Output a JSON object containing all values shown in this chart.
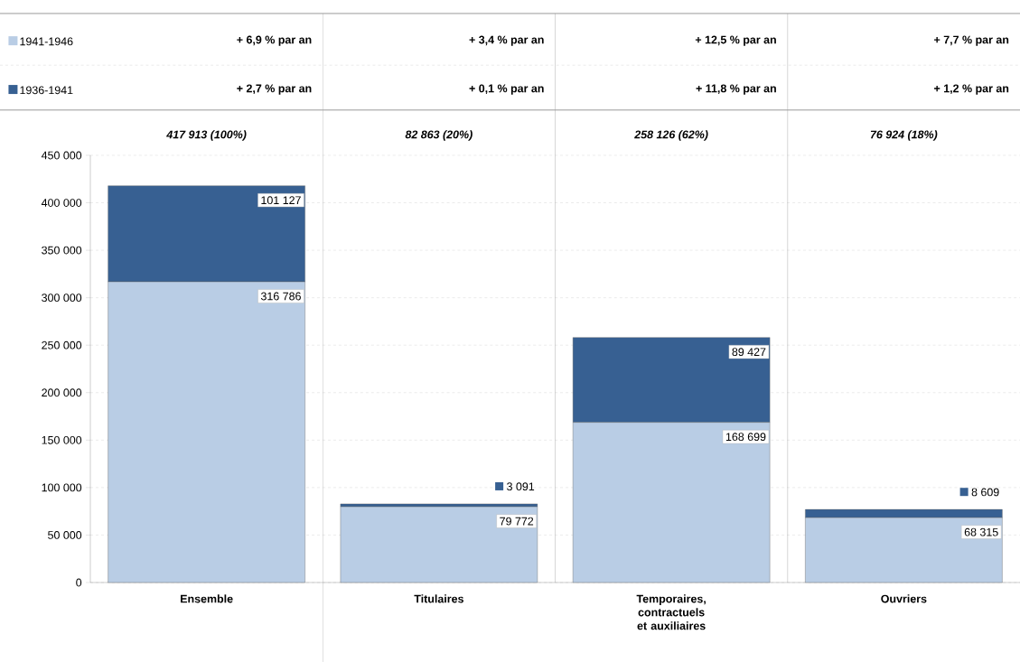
{
  "chart_data": {
    "type": "bar",
    "stacked": true,
    "categories": [
      "Ensemble",
      "Titulaires",
      "Temporaires, contractuels et auxiliaires",
      "Ouvriers"
    ],
    "series": [
      {
        "name": "1941-1946",
        "color": "#b9cde5",
        "values": [
          316786,
          79772,
          168699,
          68315
        ],
        "value_labels": [
          "316 786",
          "79 772",
          "168 699",
          "68 315"
        ]
      },
      {
        "name": "1936-1941",
        "color": "#376092",
        "values": [
          101127,
          3091,
          89427,
          8609
        ],
        "value_labels": [
          "101 127",
          "3 091",
          "89 427",
          "8 609"
        ]
      }
    ],
    "annotations": [
      "+ 6,9 % par an",
      "+ 3,4 % par an",
      "+ 12,5 % par an",
      "+ 7,7 % par an",
      "+ 2,7 % par an",
      "+ 0,1 % par an",
      "+ 11,8 % par an",
      "+ 1,2 % par an",
      "417 913 (100%)",
      "82 863 (20%)",
      "258 126 (62%)",
      "76 924 (18%)"
    ],
    "ylim": [
      0,
      450000
    ],
    "yticks": [
      {
        "value": 0,
        "label": "0"
      },
      {
        "value": 50000,
        "label": "50 000"
      },
      {
        "value": 100000,
        "label": "100 000"
      },
      {
        "value": 150000,
        "label": "150 000"
      },
      {
        "value": 200000,
        "label": "200 000"
      },
      {
        "value": 250000,
        "label": "250 000"
      },
      {
        "value": 300000,
        "label": "300 000"
      },
      {
        "value": 350000,
        "label": "350 000"
      },
      {
        "value": 400000,
        "label": "400 000"
      },
      {
        "value": 450000,
        "label": "450 000"
      }
    ],
    "grid": "y",
    "legend": "top left"
  }
}
